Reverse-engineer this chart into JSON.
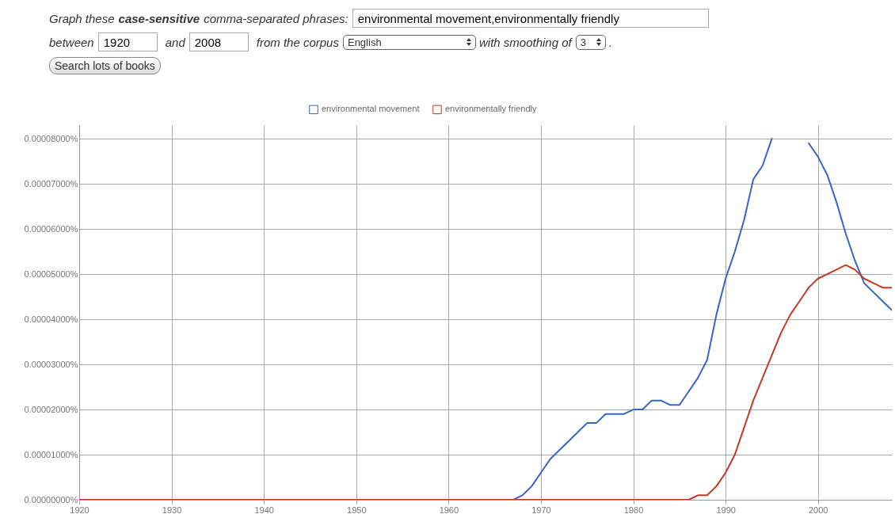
{
  "chart_data": {
    "type": "line",
    "annotations": [
      "Graph these",
      "case-sensitive",
      "comma-separated phrases:",
      "environmental movement,environmentally friendly",
      "between",
      "1920",
      "and",
      "2008",
      "from the corpus",
      "English",
      "with smoothing of",
      "3",
      ".",
      "Search lots of books"
    ],
    "series": [
      {
        "name": "environmental movement",
        "color": "#3366cc",
        "x": [
          1920,
          1967,
          1968,
          1969,
          1970,
          1971,
          1972,
          1973,
          1974,
          1975,
          1976,
          1977,
          1978,
          1979,
          1980,
          1981,
          1982,
          1983,
          1984,
          1985,
          1986,
          1987,
          1988,
          1989,
          1990,
          1991,
          1992,
          1993,
          1994,
          1995,
          1996,
          1997,
          1998,
          1999,
          2000,
          2001,
          2002,
          2003,
          2004,
          2005,
          2006,
          2007,
          2008
        ],
        "values": [
          0,
          0,
          1e-06,
          3e-06,
          6e-06,
          9e-06,
          1.1e-05,
          1.3e-05,
          1.5e-05,
          1.7e-05,
          1.7e-05,
          1.9e-05,
          1.9e-05,
          1.9e-05,
          2e-05,
          2e-05,
          2.2e-05,
          2.2e-05,
          2.1e-05,
          2.1e-05,
          2.4e-05,
          2.7e-05,
          3.1e-05,
          4.1e-05,
          4.9e-05,
          5.5e-05,
          6.2e-05,
          7.1e-05,
          7.4e-05,
          8e-05,
          null,
          null,
          null,
          7.9e-05,
          7.6e-05,
          7.2e-05,
          6.6e-05,
          5.9e-05,
          5.3e-05,
          4.8e-05,
          4.6e-05,
          4.4e-05,
          4.2e-05
        ]
      },
      {
        "name": "environmentally friendly",
        "color": "#c23a22",
        "x": [
          1920,
          1985,
          1986,
          1987,
          1988,
          1989,
          1990,
          1991,
          1992,
          1993,
          1994,
          1995,
          1996,
          1997,
          1998,
          1999,
          2000,
          2001,
          2002,
          2003,
          2004,
          2005,
          2006,
          2007,
          2008
        ],
        "values": [
          0,
          0,
          0,
          1e-06,
          1e-06,
          3e-06,
          6e-06,
          1e-05,
          1.6e-05,
          2.2e-05,
          2.7e-05,
          3.2e-05,
          3.7e-05,
          4.1e-05,
          4.4e-05,
          4.7e-05,
          4.9e-05,
          5e-05,
          5.1e-05,
          5.2e-05,
          5.1e-05,
          4.9e-05,
          4.8e-05,
          4.7e-05,
          4.7e-05
        ]
      }
    ],
    "xlim": [
      1920,
      2008
    ],
    "xticks": [
      1920,
      1930,
      1940,
      1950,
      1960,
      1970,
      1980,
      1990,
      2000
    ],
    "ylim": [
      0,
      8.3e-05
    ],
    "yticks": [
      {
        "value": 0,
        "label": "0.00000000%"
      },
      {
        "value": 1e-05,
        "label": "0.00001000%"
      },
      {
        "value": 2e-05,
        "label": "0.00002000%"
      },
      {
        "value": 3e-05,
        "label": "0.00003000%"
      },
      {
        "value": 4e-05,
        "label": "0.00004000%"
      },
      {
        "value": 5e-05,
        "label": "0.00005000%"
      },
      {
        "value": 6e-05,
        "label": "0.00006000%"
      },
      {
        "value": 7e-05,
        "label": "0.00007000%"
      },
      {
        "value": 8e-05,
        "label": "0.00008000%"
      }
    ],
    "grid": true,
    "legend": "top",
    "marker": "none",
    "line_style": "solid"
  }
}
